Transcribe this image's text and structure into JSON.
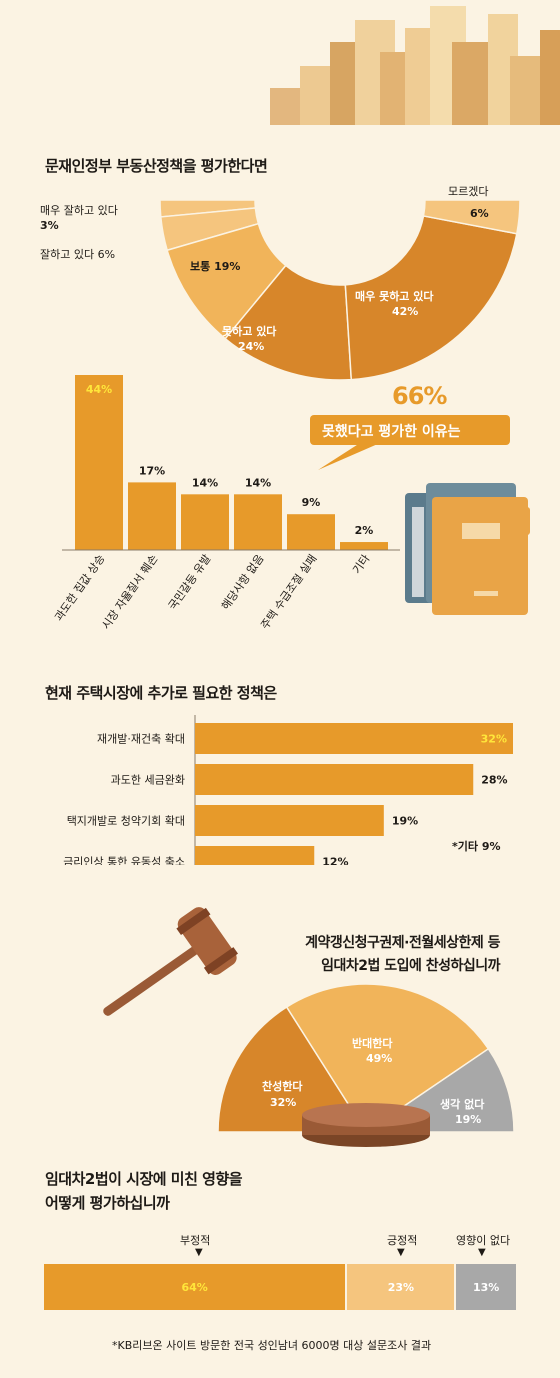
{
  "section1": {
    "title": "문재인정부 부동산정책을  평가한다면",
    "labels": {
      "very_good": "매우 잘하고 있다",
      "very_good_val": "3%",
      "good": "잘하고 있다 6%",
      "normal": "보통 19%",
      "bad": "못하고 있다",
      "bad_val": "24%",
      "very_bad": "매우 못하고 있다",
      "very_bad_val": "42%",
      "dont_know": "모르겠다",
      "dont_know_val": "6%"
    }
  },
  "section2": {
    "highlight": "66%",
    "banner": "못했다고  평가한 이유는"
  },
  "section3": {
    "title": "현재 주택시장에 추가로 필요한 정책은",
    "other_note": "*기타 9%"
  },
  "section4": {
    "title_line1": "계약갱신청구권제·전월세상한제 등",
    "title_line2": "임대차2법 도입에 찬성하십니까",
    "labels": {
      "agree": "찬성한다",
      "agree_val": "32%",
      "oppose": "반대한다",
      "oppose_val": "49%",
      "no_opinion": "생각 없다",
      "no_opinion_val": "19%"
    }
  },
  "section5": {
    "title_line1": "임대차2법이 시장에 미친 영향을",
    "title_line2": "어떻게 평가하십니까",
    "arrow_labels": [
      "부정적",
      "긍정적",
      "영향이 없다"
    ],
    "bar_vals": [
      "64%",
      "23%",
      "13%"
    ]
  },
  "footer": "*KB리브온 사이트 방문한 전국 성인남녀 6000명 대상 설문조사 결과",
  "colors": {
    "background": "#fbf3e3",
    "orange": "#e79a2a",
    "dark_orange": "#d7862a",
    "light_orange": "#f1b45a",
    "pale_orange": "#f5c57e",
    "gray": "#a8a8a8",
    "highlight_yellow": "#ffe63a"
  },
  "chart_data": [
    {
      "type": "pie",
      "title": "문재인정부 부동산정책을  평가한다면",
      "categories": [
        "매우 잘하고 있다",
        "잘하고 있다",
        "보통",
        "못하고 있다",
        "매우 못하고 있다",
        "모르겠다"
      ],
      "values": [
        3,
        6,
        19,
        24,
        42,
        6
      ]
    },
    {
      "type": "bar",
      "title": "못했다고  평가한 이유는",
      "categories": [
        "과도한 집값 상승",
        "시장 자율질서 훼손",
        "국민갈등 유발",
        "해당사항 없음",
        "주택 수급조절 실패",
        "기타"
      ],
      "values": [
        44,
        17,
        14,
        14,
        9,
        2
      ],
      "value_labels": [
        "44%",
        "17%",
        "14%",
        "14%",
        "9%",
        "2%"
      ],
      "ylim": [
        0,
        44
      ]
    },
    {
      "type": "bar",
      "title": "현재 주택시장에 추가로 필요한 정책은",
      "categories": [
        "재개발·재건축 확대",
        "과도한 세금완화",
        "택지개발로 청약기회 확대",
        "금리인상 통한 유동성 축소"
      ],
      "values": [
        32,
        28,
        19,
        12
      ],
      "value_labels": [
        "32%",
        "28%",
        "19%",
        "12%"
      ],
      "xlim": [
        0,
        32
      ]
    },
    {
      "type": "pie",
      "title": "계약갱신청구권제·전월세상한제 등 임대차2법 도입에 찬성하십니까",
      "categories": [
        "찬성한다",
        "반대한다",
        "생각 없다"
      ],
      "values": [
        32,
        49,
        19
      ]
    },
    {
      "type": "bar",
      "title": "임대차2법이 시장에 미친 영향을 어떻게 평가하십니까",
      "categories": [
        "부정적",
        "긍정적",
        "영향이 없다"
      ],
      "values": [
        64,
        23,
        13
      ]
    }
  ]
}
